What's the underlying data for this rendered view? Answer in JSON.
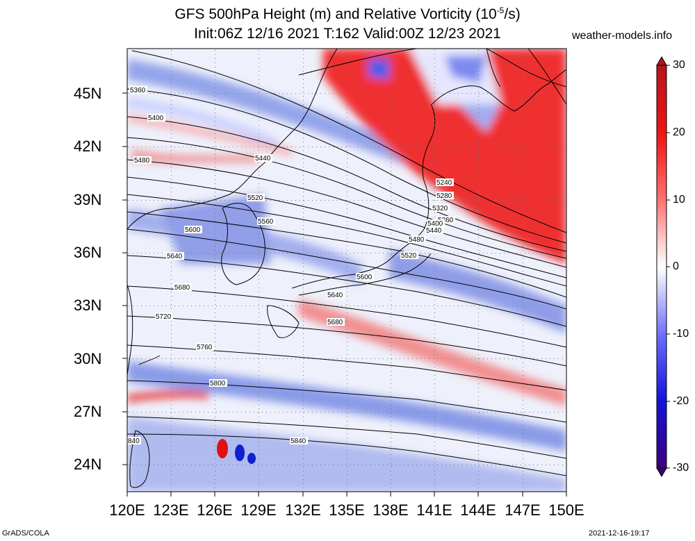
{
  "title": {
    "line1_prefix": "GFS 500hPa Height (m) and Relative Vorticity (10",
    "line1_exp": "-5",
    "line1_suffix": "/s)",
    "line2": "Init:06Z 12/16 2021 T:162 Valid:00Z 12/23 2021"
  },
  "brand": "weather-models.info",
  "footer": {
    "left": "GrADS/COLA",
    "right": "2021-12-16-19:17"
  },
  "axes": {
    "lat_labels": [
      "45N",
      "42N",
      "39N",
      "36N",
      "33N",
      "30N",
      "27N",
      "24N"
    ],
    "lon_labels": [
      "120E",
      "123E",
      "126E",
      "129E",
      "132E",
      "135E",
      "138E",
      "141E",
      "144E",
      "147E",
      "150E"
    ],
    "lat_range": [
      22.5,
      48.3
    ],
    "lon_range": [
      120,
      150
    ]
  },
  "colorbar": {
    "labels": [
      "30",
      "20",
      "10",
      "0",
      "-10",
      "-20",
      "-30"
    ],
    "range": [
      -30,
      30
    ],
    "colors": {
      "max": "#b4141e",
      "pos": "#ff1a1a",
      "zero": "#ffffff",
      "neg": "#1a1aff",
      "min": "#3c007c"
    }
  },
  "contours": {
    "labels": [
      "5360",
      "5400",
      "5440",
      "5480",
      "5520",
      "5560",
      "5600",
      "5640",
      "5680",
      "5720",
      "5760",
      "5800",
      "840",
      "5840",
      "5240",
      "5280",
      "5320",
      "5360",
      "5400",
      "5440",
      "5480",
      "5520",
      "5600",
      "5640",
      "5680"
    ]
  }
}
